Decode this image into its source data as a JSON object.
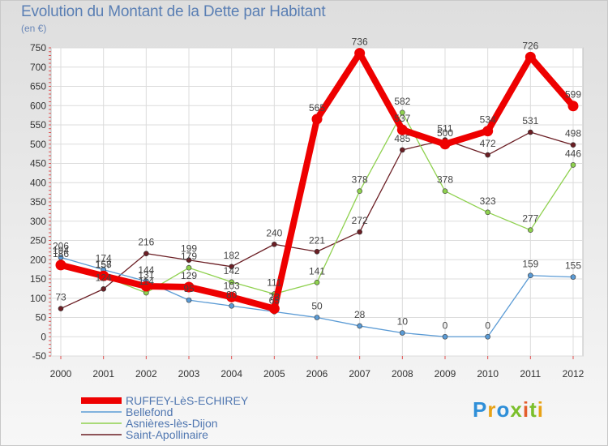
{
  "header": {
    "title": "Evolution du Montant de la Dette par Habitant",
    "unit": "(en €)"
  },
  "logo": {
    "text": "Proxiti"
  },
  "chart_data": {
    "type": "line",
    "title": "Evolution du Montant de la Dette par Habitant",
    "ylabel": "(en €)",
    "xlabel": "",
    "x": [
      "2000",
      "2001",
      "2002",
      "2003",
      "2004",
      "2005",
      "2006",
      "2007",
      "2008",
      "2009",
      "2010",
      "2011",
      "2012"
    ],
    "ylim": [
      -50,
      750
    ],
    "yticks": [
      -50,
      0,
      50,
      100,
      150,
      200,
      250,
      300,
      350,
      400,
      450,
      500,
      550,
      600,
      650,
      700,
      750
    ],
    "grid": true,
    "legend_position": "bottom-left",
    "series": [
      {
        "name": "Saint-Apollinaire",
        "color": "#6b1e24",
        "values": [
          73,
          124,
          216,
          199,
          182,
          240,
          221,
          272,
          485,
          511,
          472,
          531,
          498
        ],
        "labels": [
          "73",
          "124",
          "216",
          "199",
          "182",
          "240",
          "221",
          "272",
          "485",
          "511",
          "472",
          "531",
          "498"
        ]
      },
      {
        "name": "Asnières-lès-Dijon",
        "color": "#8fd14f",
        "values": [
          194,
          157,
          114,
          179,
          142,
          111,
          141,
          378,
          582,
          378,
          323,
          277,
          446
        ],
        "labels": [
          "194",
          "157",
          "114",
          "179",
          "142",
          "111",
          "141",
          "378",
          "582",
          "378",
          "323",
          "277",
          "446"
        ]
      },
      {
        "name": "Bellefond",
        "color": "#5b9bd5",
        "values": [
          206,
          174,
          144,
          95,
          80,
          65,
          50,
          28,
          10,
          0,
          0,
          159,
          155
        ],
        "labels": [
          "206",
          "174",
          "144",
          "95",
          "80",
          "65",
          "50",
          "28",
          "10",
          "0",
          "0",
          "159",
          "155"
        ]
      },
      {
        "name": "RUFFEY-LèS-ECHIREY",
        "color": "#ee0000",
        "values": [
          186,
          158,
          131,
          129,
          103,
          73,
          565,
          736,
          537,
          500,
          534,
          726,
          599
        ],
        "labels": [
          "186",
          "158",
          "131",
          "129",
          "103",
          "73",
          "565",
          "736",
          "537",
          "500",
          "534",
          "726",
          "599"
        ]
      }
    ],
    "legend_order": [
      "RUFFEY-LèS-ECHIREY",
      "Bellefond",
      "Asnières-lès-Dijon",
      "Saint-Apollinaire"
    ]
  }
}
